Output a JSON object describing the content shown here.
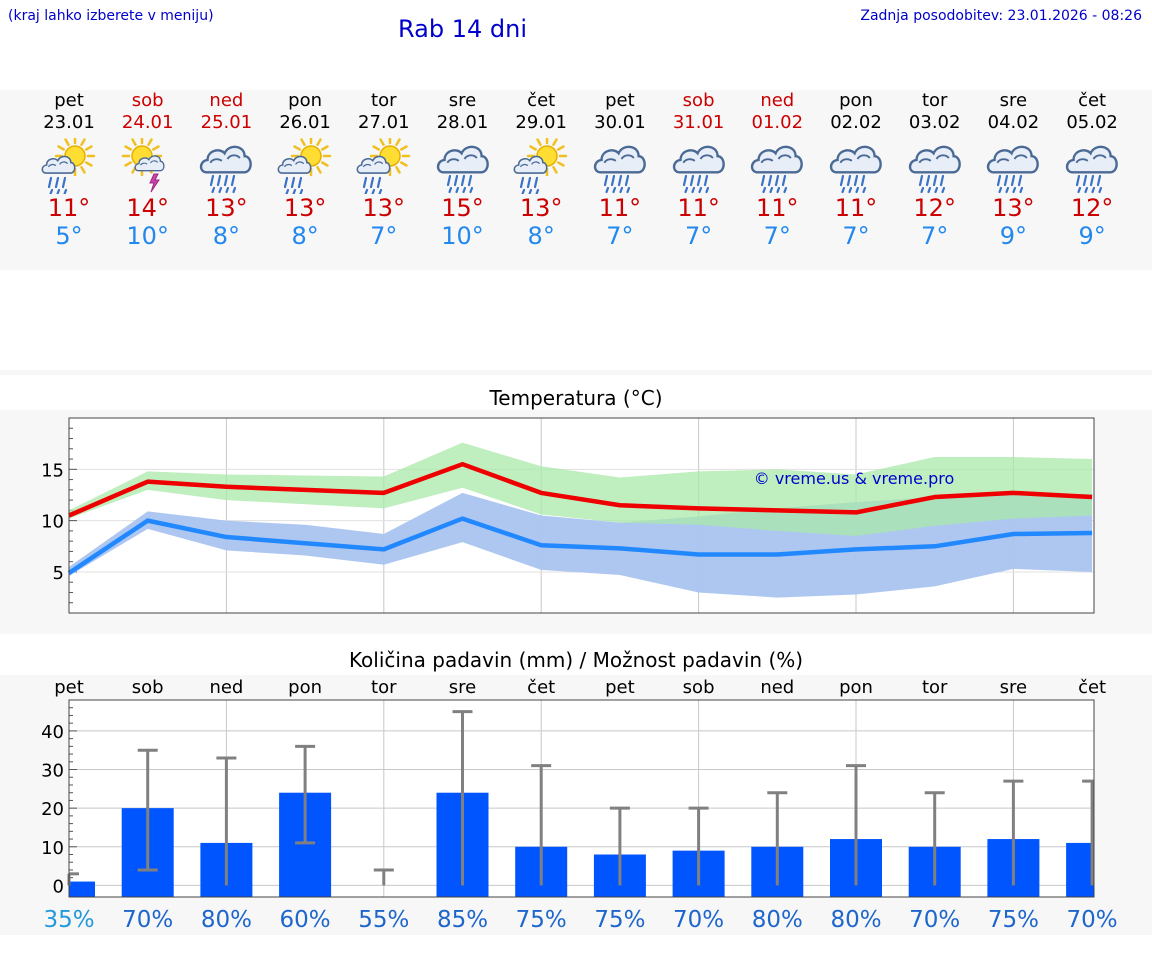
{
  "header": {
    "hint": "(kraj lahko izberete v meniju)",
    "title": "Rab 14 dni",
    "updated": "Zadnja posodobitev: 23.01.2026 - 08:26"
  },
  "days": [
    {
      "name": "pet",
      "date": "23.01",
      "weekend": false,
      "icon": "sun-cloud-rain-icon",
      "tmax": "11°",
      "tmin": "5°"
    },
    {
      "name": "sob",
      "date": "24.01",
      "weekend": true,
      "icon": "sun-thunder-icon",
      "tmax": "14°",
      "tmin": "10°"
    },
    {
      "name": "ned",
      "date": "25.01",
      "weekend": true,
      "icon": "cloud-rain-icon",
      "tmax": "13°",
      "tmin": "8°"
    },
    {
      "name": "pon",
      "date": "26.01",
      "weekend": false,
      "icon": "sun-cloud-rain-icon",
      "tmax": "13°",
      "tmin": "8°"
    },
    {
      "name": "tor",
      "date": "27.01",
      "weekend": false,
      "icon": "sun-cloud-rain-icon",
      "tmax": "13°",
      "tmin": "7°"
    },
    {
      "name": "sre",
      "date": "28.01",
      "weekend": false,
      "icon": "cloud-rain-icon",
      "tmax": "15°",
      "tmin": "10°"
    },
    {
      "name": "čet",
      "date": "29.01",
      "weekend": false,
      "icon": "sun-cloud-rain-icon",
      "tmax": "13°",
      "tmin": "8°"
    },
    {
      "name": "pet",
      "date": "30.01",
      "weekend": false,
      "icon": "cloud-rain-icon",
      "tmax": "11°",
      "tmin": "7°"
    },
    {
      "name": "sob",
      "date": "31.01",
      "weekend": true,
      "icon": "cloud-rain-icon",
      "tmax": "11°",
      "tmin": "7°"
    },
    {
      "name": "ned",
      "date": "01.02",
      "weekend": true,
      "icon": "cloud-rain-icon",
      "tmax": "11°",
      "tmin": "7°"
    },
    {
      "name": "pon",
      "date": "02.02",
      "weekend": false,
      "icon": "cloud-rain-icon",
      "tmax": "11°",
      "tmin": "7°"
    },
    {
      "name": "tor",
      "date": "03.02",
      "weekend": false,
      "icon": "cloud-rain-icon",
      "tmax": "12°",
      "tmin": "7°"
    },
    {
      "name": "sre",
      "date": "04.02",
      "weekend": false,
      "icon": "cloud-rain-icon",
      "tmax": "13°",
      "tmin": "9°"
    },
    {
      "name": "čet",
      "date": "05.02",
      "weekend": false,
      "icon": "cloud-rain-icon",
      "tmax": "12°",
      "tmin": "9°"
    }
  ],
  "colors": {
    "max_line": "#ee0000",
    "min_line": "#2288ff",
    "max_band": "#aae8aa",
    "min_band": "#aac4f0",
    "overlap_band": "#77c4a0",
    "bar": "#0055ff",
    "whisker": "#808080",
    "grid": "#c8c8c8",
    "weekend": "#cc0000",
    "prob_text": "#1e66cc",
    "prob_first": "#2299dd"
  },
  "chart_data": [
    {
      "type": "line",
      "title": "Temperatura (°C)",
      "xlabel": "",
      "ylabel": "",
      "ylim": [
        1,
        20
      ],
      "yticks": [
        5,
        10,
        15
      ],
      "watermark": "© vreme.us & vreme.pro",
      "x": [
        0,
        1,
        2,
        3,
        4,
        5,
        6,
        7,
        8,
        9,
        10,
        11,
        12,
        13
      ],
      "series": [
        {
          "name": "max",
          "values": [
            10.5,
            13.8,
            13.3,
            13.0,
            12.7,
            15.5,
            12.7,
            11.5,
            11.2,
            11.0,
            10.8,
            12.3,
            12.7,
            12.3
          ],
          "band_low": [
            10.2,
            13.0,
            12.0,
            11.6,
            11.2,
            13.2,
            10.6,
            9.8,
            9.6,
            9.0,
            8.5,
            9.5,
            10.2,
            10.5
          ],
          "band_high": [
            11.0,
            14.8,
            14.5,
            14.4,
            14.3,
            17.6,
            15.3,
            14.2,
            14.8,
            15.0,
            14.5,
            16.2,
            16.2,
            16.0
          ]
        },
        {
          "name": "min",
          "values": [
            4.9,
            10.0,
            8.4,
            7.8,
            7.2,
            10.2,
            7.6,
            7.3,
            6.7,
            6.7,
            7.2,
            7.5,
            8.7,
            8.8
          ],
          "band_low": [
            4.6,
            9.2,
            7.1,
            6.6,
            5.7,
            7.9,
            5.2,
            4.7,
            3.0,
            2.5,
            2.8,
            3.6,
            5.3,
            5.0
          ],
          "band_high": [
            5.5,
            10.9,
            10.0,
            9.6,
            8.7,
            12.7,
            10.5,
            9.8,
            10.4,
            11.2,
            11.8,
            12.3,
            12.5,
            12.6
          ]
        }
      ]
    },
    {
      "type": "bar",
      "title": "Količina padavin (mm) / Možnost padavin (%)",
      "xlabel": "",
      "ylabel": "",
      "ylim": [
        -3,
        48
      ],
      "yticks": [
        0,
        10,
        20,
        30,
        40
      ],
      "categories": [
        "pet",
        "sob",
        "ned",
        "pon",
        "tor",
        "sre",
        "čet",
        "pet",
        "sob",
        "ned",
        "pon",
        "tor",
        "sre",
        "čet"
      ],
      "values": [
        1,
        20,
        11,
        24,
        0,
        24,
        10,
        8,
        9,
        10,
        12,
        10,
        12,
        11
      ],
      "err_low": [
        0,
        4,
        0,
        11,
        0,
        0,
        0,
        0,
        0,
        0,
        0,
        0,
        0,
        0
      ],
      "err_high": [
        3,
        35,
        33,
        36,
        4,
        45,
        31,
        20,
        20,
        24,
        31,
        24,
        27,
        27
      ],
      "probability": [
        "35%",
        "70%",
        "80%",
        "60%",
        "55%",
        "85%",
        "75%",
        "75%",
        "70%",
        "80%",
        "80%",
        "70%",
        "75%",
        "70%"
      ]
    }
  ]
}
